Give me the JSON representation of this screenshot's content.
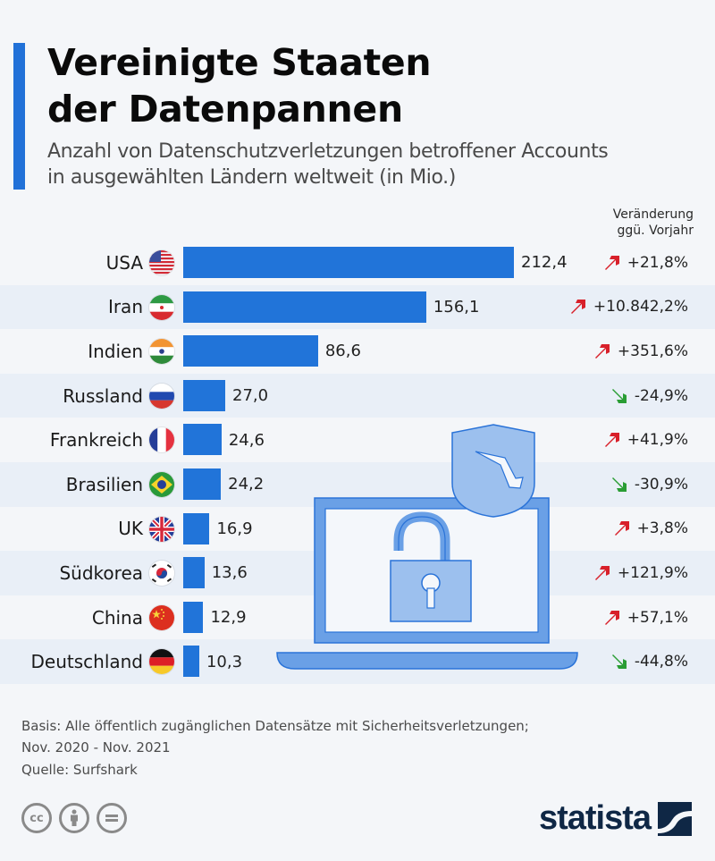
{
  "header": {
    "title_line1": "Vereinigte Staaten",
    "title_line2": "der Datenpannen",
    "subtitle_line1": "Anzahl von Datenschutzverletzungen betroffener Accounts",
    "subtitle_line2": "in ausgewählten Ländern weltweit (in Mio.)",
    "accent_color": "#2171d8"
  },
  "change_header": {
    "line1": "Veränderung",
    "line2": "ggü. Vorjahr"
  },
  "colors": {
    "bar": "#2174d9",
    "up": "#d8202a",
    "down": "#2a9d34"
  },
  "chart_data": {
    "type": "bar",
    "orientation": "horizontal",
    "title": "Vereinigte Staaten der Datenpannen",
    "subtitle": "Anzahl von Datenschutzverletzungen betroffener Accounts in ausgewählten Ländern weltweit (in Mio.)",
    "xlabel": "",
    "ylabel": "",
    "unit": "Mio.",
    "xlim": [
      0,
      212.4
    ],
    "grid": false,
    "categories": [
      "USA",
      "Iran",
      "Indien",
      "Russland",
      "Frankreich",
      "Brasilien",
      "UK",
      "Südkorea",
      "China",
      "Deutschland"
    ],
    "values": [
      212.4,
      156.1,
      86.6,
      27.0,
      24.6,
      24.2,
      16.9,
      13.6,
      12.9,
      10.3
    ],
    "value_labels": [
      "212,4",
      "156,1",
      "86,6",
      "27,0",
      "24,6",
      "24,2",
      "16,9",
      "13,6",
      "12,9",
      "10,3"
    ],
    "change_vs_prev_year": [
      "+21,8%",
      "+10.842,2%",
      "+351,6%",
      "-24,9%",
      "+41,9%",
      "-30,9%",
      "+3,8%",
      "+121,9%",
      "+57,1%",
      "-44,8%"
    ],
    "change_direction": [
      "up",
      "up",
      "up",
      "down",
      "up",
      "down",
      "up",
      "up",
      "up",
      "down"
    ],
    "flags": [
      "us-flag-icon",
      "iran-flag-icon",
      "india-flag-icon",
      "russia-flag-icon",
      "france-flag-icon",
      "brazil-flag-icon",
      "uk-flag-icon",
      "south-korea-flag-icon",
      "china-flag-icon",
      "germany-flag-icon"
    ]
  },
  "footer": {
    "note_line1": "Basis: Alle öffentlich zugänglichen Datensätze mit Sicherheitsverletzungen;",
    "note_line2": "Nov. 2020 - Nov. 2021",
    "source": "Quelle: Surfshark",
    "license_icons": [
      "cc-icon",
      "by-attribution-icon",
      "no-derivatives-icon"
    ],
    "logo_text": "statista"
  }
}
